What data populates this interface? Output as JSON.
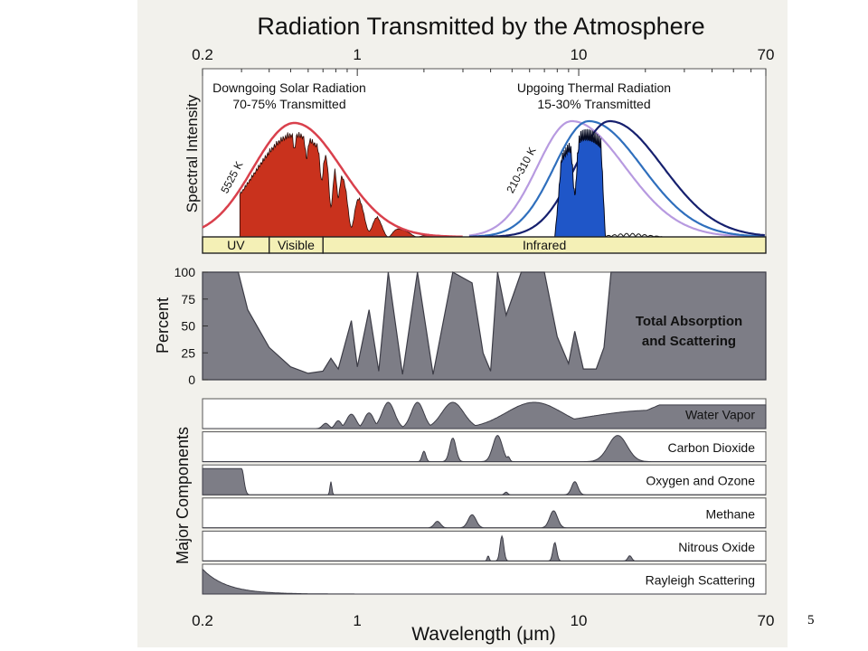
{
  "slide_number": "5",
  "chart_data": {
    "type": "area",
    "title": "Radiation Transmitted by the Atmosphere",
    "xlabel": "Wavelength (μm)",
    "x_scale": "log",
    "xlim": [
      0.2,
      70
    ],
    "x_ticks": [
      "0.2",
      "1",
      "10",
      "70"
    ],
    "grid": false,
    "panels": [
      {
        "id": "spectral",
        "ylabel": "Spectral Intensity",
        "annotations": {
          "solar": [
            "Downgoing Solar Radiation",
            "70-75% Transmitted"
          ],
          "thermal": [
            "Upgoing Thermal Radiation",
            "15-30% Transmitted"
          ],
          "solar_temp": "5525 K",
          "thermal_temp": "210-310 K"
        },
        "bands": [
          {
            "label": "UV",
            "from": 0.2,
            "to": 0.4
          },
          {
            "label": "Visible",
            "from": 0.4,
            "to": 0.7
          },
          {
            "label": "Infrared",
            "from": 0.7,
            "to": 70
          }
        ],
        "blackbody_peaks": [
          {
            "temp": "5525 K",
            "peak_um": 0.52,
            "color": "#d9404c"
          },
          {
            "temp": "310 K",
            "peak_um": 9.3,
            "color": "#b79ae0"
          },
          {
            "temp": "260 K",
            "peak_um": 11.1,
            "color": "#2f6fbd"
          },
          {
            "temp": "210 K",
            "peak_um": 13.8,
            "color": "#16206e"
          }
        ],
        "colors": {
          "solar_fill": "#c9321d",
          "thermal_fill": "#1f56c8"
        }
      },
      {
        "id": "total",
        "ylabel": "Percent",
        "y_ticks": [
          "100",
          "75",
          "50",
          "25",
          "0"
        ],
        "ylim": [
          0,
          100
        ],
        "label": [
          "Total Absorption",
          "and Scattering"
        ],
        "series": [
          {
            "x": 0.2,
            "y": 100
          },
          {
            "x": 0.29,
            "y": 100
          },
          {
            "x": 0.32,
            "y": 65
          },
          {
            "x": 0.4,
            "y": 30
          },
          {
            "x": 0.5,
            "y": 12
          },
          {
            "x": 0.6,
            "y": 6
          },
          {
            "x": 0.7,
            "y": 8
          },
          {
            "x": 0.76,
            "y": 20
          },
          {
            "x": 0.82,
            "y": 10
          },
          {
            "x": 0.94,
            "y": 55
          },
          {
            "x": 1.0,
            "y": 12
          },
          {
            "x": 1.13,
            "y": 65
          },
          {
            "x": 1.25,
            "y": 8
          },
          {
            "x": 1.38,
            "y": 100
          },
          {
            "x": 1.6,
            "y": 5
          },
          {
            "x": 1.87,
            "y": 100
          },
          {
            "x": 2.2,
            "y": 5
          },
          {
            "x": 2.7,
            "y": 100
          },
          {
            "x": 3.3,
            "y": 90
          },
          {
            "x": 3.7,
            "y": 25
          },
          {
            "x": 4.0,
            "y": 8
          },
          {
            "x": 4.3,
            "y": 100
          },
          {
            "x": 4.7,
            "y": 60
          },
          {
            "x": 5.5,
            "y": 100
          },
          {
            "x": 7.0,
            "y": 100
          },
          {
            "x": 8.0,
            "y": 40
          },
          {
            "x": 9.0,
            "y": 15
          },
          {
            "x": 9.6,
            "y": 45
          },
          {
            "x": 10.5,
            "y": 10
          },
          {
            "x": 12.0,
            "y": 10
          },
          {
            "x": 13.0,
            "y": 30
          },
          {
            "x": 14.0,
            "y": 100
          },
          {
            "x": 70,
            "y": 100
          }
        ]
      },
      {
        "id": "components",
        "ylabel": "Major Components",
        "components": [
          {
            "name": "Water Vapor",
            "bands": [
              {
                "c": 0.72,
                "w": 0.02,
                "h": 0.2
              },
              {
                "c": 0.82,
                "w": 0.02,
                "h": 0.3
              },
              {
                "c": 0.94,
                "w": 0.03,
                "h": 0.55
              },
              {
                "c": 1.13,
                "w": 0.03,
                "h": 0.6
              },
              {
                "c": 1.38,
                "w": 0.04,
                "h": 1.0
              },
              {
                "c": 1.87,
                "w": 0.04,
                "h": 1.0
              },
              {
                "c": 2.7,
                "w": 0.07,
                "h": 1.0
              },
              {
                "c": 6.3,
                "w": 0.18,
                "h": 1.0
              },
              {
                "c": 22.0,
                "w": 0.45,
                "h": 0.7
              }
            ]
          },
          {
            "name": "Carbon Dioxide",
            "bands": [
              {
                "c": 2.0,
                "w": 0.012,
                "h": 0.4
              },
              {
                "c": 2.7,
                "w": 0.02,
                "h": 0.9
              },
              {
                "c": 4.3,
                "w": 0.03,
                "h": 1.0
              },
              {
                "c": 4.8,
                "w": 0.01,
                "h": 0.2
              },
              {
                "c": 15.0,
                "w": 0.06,
                "h": 1.0
              }
            ]
          },
          {
            "name": "Oxygen and Ozone",
            "bands": [
              {
                "c": 0.76,
                "w": 0.006,
                "h": 0.5
              },
              {
                "c": 4.7,
                "w": 0.01,
                "h": 0.1
              },
              {
                "c": 9.6,
                "w": 0.02,
                "h": 0.5
              }
            ]
          },
          {
            "name": "Methane",
            "bands": [
              {
                "c": 2.3,
                "w": 0.02,
                "h": 0.25
              },
              {
                "c": 3.3,
                "w": 0.025,
                "h": 0.5
              },
              {
                "c": 7.7,
                "w": 0.025,
                "h": 0.65
              }
            ]
          },
          {
            "name": "Nitrous Oxide",
            "bands": [
              {
                "c": 3.9,
                "w": 0.006,
                "h": 0.2
              },
              {
                "c": 4.5,
                "w": 0.012,
                "h": 0.95
              },
              {
                "c": 7.8,
                "w": 0.012,
                "h": 0.7
              },
              {
                "c": 17.0,
                "w": 0.012,
                "h": 0.2
              }
            ]
          },
          {
            "name": "Rayleigh Scattering",
            "bands": []
          }
        ]
      }
    ],
    "colors": {
      "fill": "#7d7d86",
      "line": "#3c3c46",
      "band_bg": "#f4f0b6",
      "panel_bg": "#ffffff"
    }
  }
}
